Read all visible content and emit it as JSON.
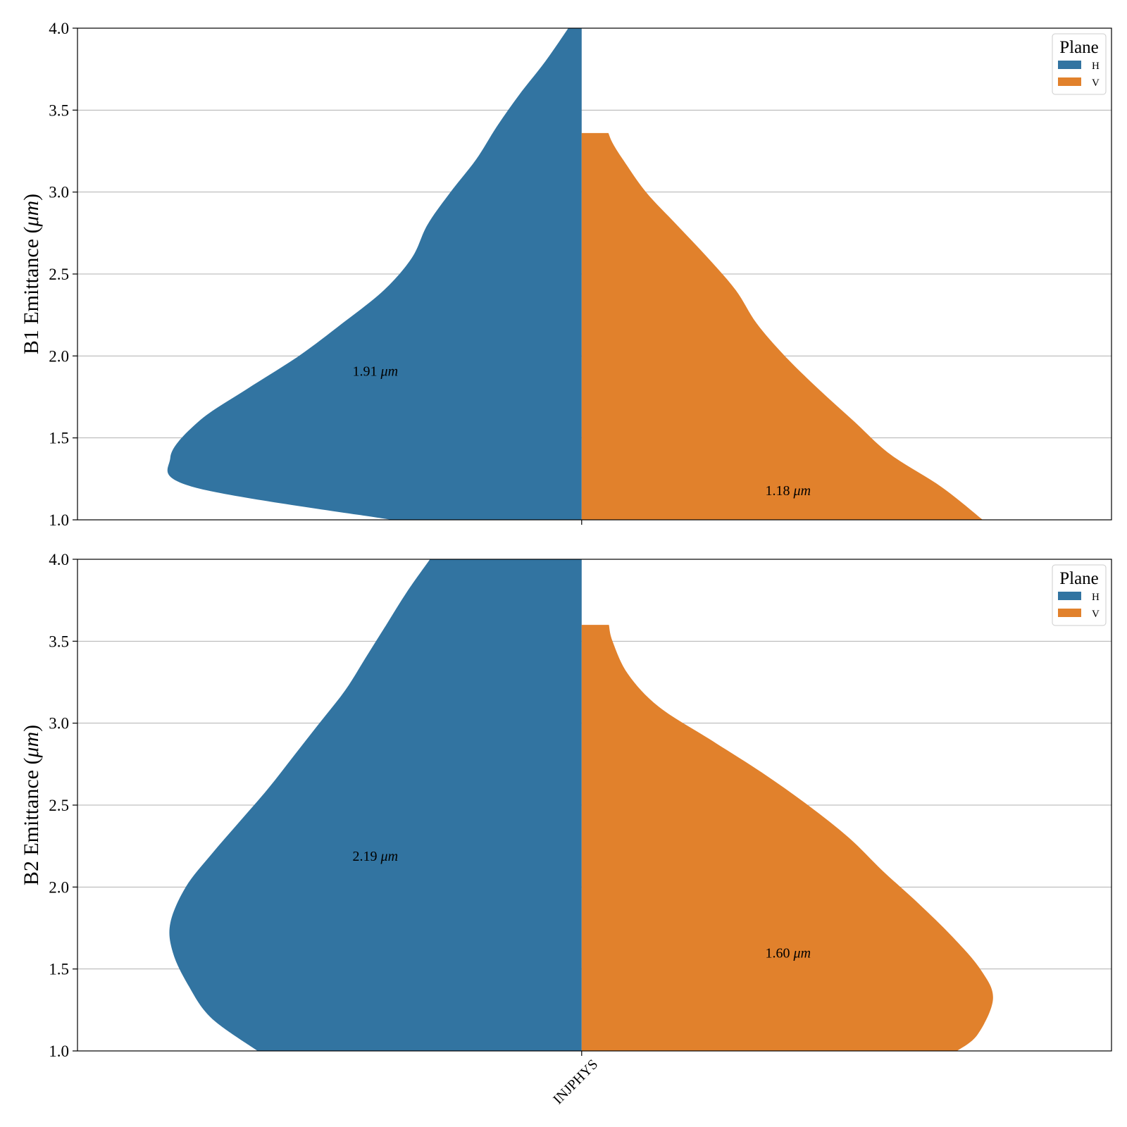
{
  "colors": {
    "H": "#3274a1",
    "V": "#e1812c",
    "grid": "#b0b0b0",
    "axes": "#000000"
  },
  "chart_data": [
    {
      "type": "violin",
      "split": true,
      "ylabel": "B1 Emittance (μm)",
      "ylim": [
        1.0,
        4.0
      ],
      "yticks": [
        "1.0",
        "1.5",
        "2.0",
        "2.5",
        "3.0",
        "3.5",
        "4.0"
      ],
      "ytick_values": [
        1.0,
        1.5,
        2.0,
        2.5,
        3.0,
        3.5,
        4.0
      ],
      "grid": true,
      "categories": [
        "INJPHYS"
      ],
      "legend": {
        "title": "Plane",
        "placement": "upper-right",
        "entries": [
          "H",
          "V"
        ]
      },
      "series": [
        {
          "name": "H",
          "median_label": "1.91 μm",
          "median_value": 1.91,
          "density": [
            [
              1.0,
              0.37
            ],
            [
              1.2,
              0.755
            ],
            [
              1.38,
              0.8
            ],
            [
              1.6,
              0.745
            ],
            [
              1.8,
              0.65
            ],
            [
              2.0,
              0.55
            ],
            [
              2.2,
              0.465
            ],
            [
              2.4,
              0.385
            ],
            [
              2.6,
              0.33
            ],
            [
              2.8,
              0.3
            ],
            [
              3.0,
              0.255
            ],
            [
              3.2,
              0.205
            ],
            [
              3.4,
              0.165
            ],
            [
              3.6,
              0.12
            ],
            [
              3.8,
              0.07
            ],
            [
              4.0,
              0.026
            ]
          ]
        },
        {
          "name": "V",
          "median_label": "1.18 μm",
          "median_value": 1.18,
          "density": [
            [
              1.0,
              0.78
            ],
            [
              1.2,
              0.7
            ],
            [
              1.4,
              0.6
            ],
            [
              1.6,
              0.53
            ],
            [
              1.8,
              0.46
            ],
            [
              2.0,
              0.395
            ],
            [
              2.2,
              0.34
            ],
            [
              2.4,
              0.3
            ],
            [
              2.6,
              0.245
            ],
            [
              2.8,
              0.185
            ],
            [
              3.0,
              0.125
            ],
            [
              3.2,
              0.08
            ],
            [
              3.3,
              0.06
            ],
            [
              3.36,
              0.052
            ]
          ]
        }
      ]
    },
    {
      "type": "violin",
      "split": true,
      "ylabel": "B2 Emittance (μm)",
      "ylim": [
        1.0,
        4.0
      ],
      "yticks": [
        "1.0",
        "1.5",
        "2.0",
        "2.5",
        "3.0",
        "3.5",
        "4.0"
      ],
      "ytick_values": [
        1.0,
        1.5,
        2.0,
        2.5,
        3.0,
        3.5,
        4.0
      ],
      "grid": true,
      "categories": [
        "INJPHYS"
      ],
      "legend": {
        "title": "Plane",
        "placement": "upper-right",
        "entries": [
          "H",
          "V"
        ]
      },
      "series": [
        {
          "name": "H",
          "median_label": "2.19 μm",
          "median_value": 2.19,
          "density": [
            [
              1.0,
              0.63
            ],
            [
              1.2,
              0.72
            ],
            [
              1.4,
              0.765
            ],
            [
              1.6,
              0.795
            ],
            [
              1.78,
              0.8
            ],
            [
              2.0,
              0.77
            ],
            [
              2.2,
              0.72
            ],
            [
              2.4,
              0.665
            ],
            [
              2.6,
              0.61
            ],
            [
              2.8,
              0.56
            ],
            [
              3.0,
              0.51
            ],
            [
              3.2,
              0.46
            ],
            [
              3.4,
              0.42
            ],
            [
              3.6,
              0.38
            ],
            [
              3.8,
              0.34
            ],
            [
              4.0,
              0.295
            ]
          ]
        },
        {
          "name": "V",
          "median_label": "1.60 μm",
          "median_value": 1.6,
          "density": [
            [
              1.0,
              0.73
            ],
            [
              1.1,
              0.77
            ],
            [
              1.32,
              0.8
            ],
            [
              1.5,
              0.775
            ],
            [
              1.7,
              0.72
            ],
            [
              1.9,
              0.655
            ],
            [
              2.1,
              0.585
            ],
            [
              2.3,
              0.52
            ],
            [
              2.5,
              0.44
            ],
            [
              2.7,
              0.35
            ],
            [
              2.9,
              0.25
            ],
            [
              3.1,
              0.15
            ],
            [
              3.3,
              0.09
            ],
            [
              3.5,
              0.06
            ],
            [
              3.6,
              0.053
            ]
          ]
        }
      ]
    }
  ]
}
